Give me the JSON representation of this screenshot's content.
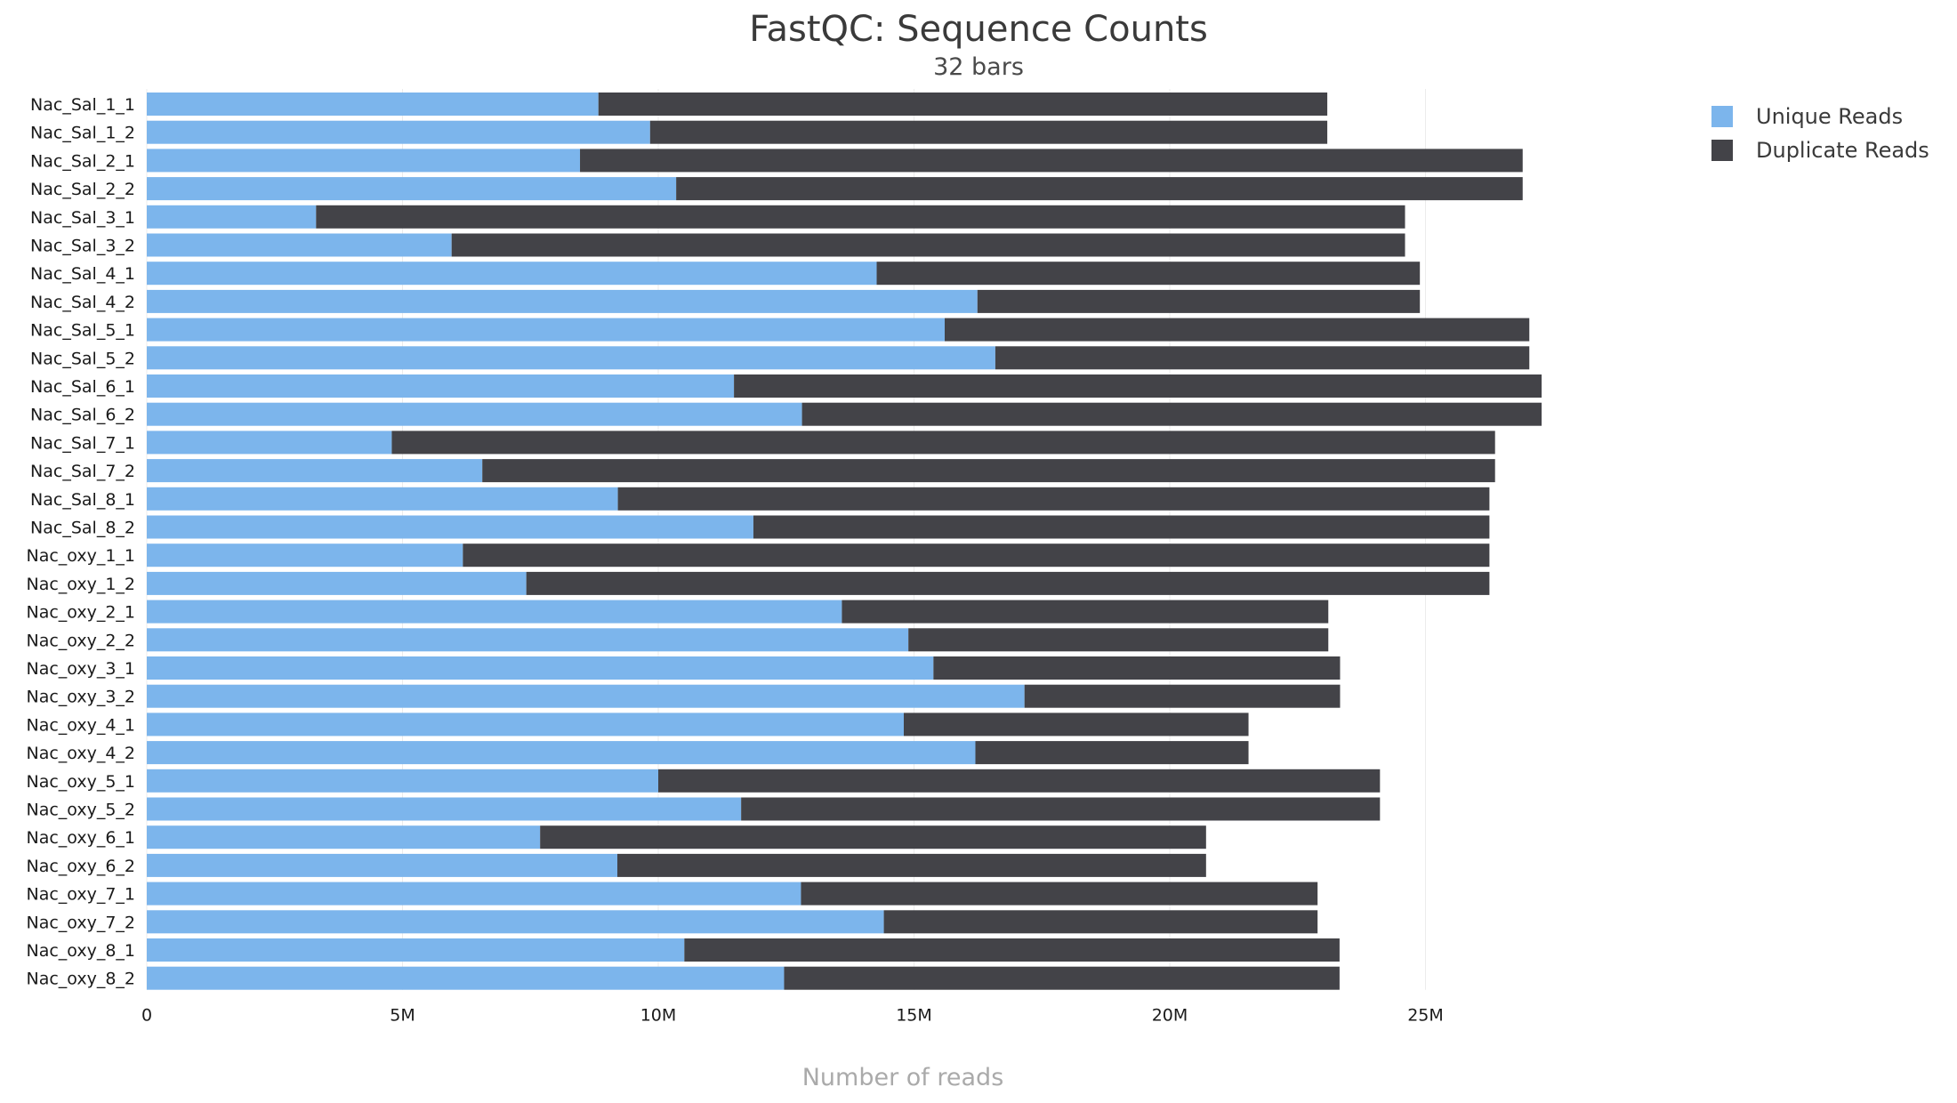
{
  "chart_data": {
    "type": "bar",
    "orientation": "horizontal",
    "stacked": true,
    "title": "FastQC: Sequence Counts",
    "subtitle": "32 bars",
    "xlabel": "Number of reads",
    "ylabel": "",
    "xlim": [
      0,
      30000000
    ],
    "x_ticks": [
      0,
      5000000,
      10000000,
      15000000,
      20000000,
      25000000
    ],
    "x_tick_labels": [
      "0",
      "5M",
      "10M",
      "15M",
      "20M",
      "25M"
    ],
    "legend_position": "top-right",
    "categories": [
      "Nac_Sal_1_1",
      "Nac_Sal_1_2",
      "Nac_Sal_2_1",
      "Nac_Sal_2_2",
      "Nac_Sal_3_1",
      "Nac_Sal_3_2",
      "Nac_Sal_4_1",
      "Nac_Sal_4_2",
      "Nac_Sal_5_1",
      "Nac_Sal_5_2",
      "Nac_Sal_6_1",
      "Nac_Sal_6_2",
      "Nac_Sal_7_1",
      "Nac_Sal_7_2",
      "Nac_Sal_8_1",
      "Nac_Sal_8_2",
      "Nac_oxy_1_1",
      "Nac_oxy_1_2",
      "Nac_oxy_2_1",
      "Nac_oxy_2_2",
      "Nac_oxy_3_1",
      "Nac_oxy_3_2",
      "Nac_oxy_4_1",
      "Nac_oxy_4_2",
      "Nac_oxy_5_1",
      "Nac_oxy_5_2",
      "Nac_oxy_6_1",
      "Nac_oxy_6_2",
      "Nac_oxy_7_1",
      "Nac_oxy_7_2",
      "Nac_oxy_8_1",
      "Nac_oxy_8_2"
    ],
    "series": [
      {
        "name": "Unique Reads",
        "color": "#7cb5ec",
        "values": [
          8830000,
          9840000,
          8470000,
          10350000,
          3310000,
          5960000,
          14270000,
          16240000,
          15600000,
          16590000,
          11480000,
          12810000,
          4790000,
          6560000,
          9210000,
          11860000,
          6180000,
          7420000,
          13590000,
          14890000,
          15380000,
          17160000,
          14800000,
          16200000,
          10000000,
          11620000,
          7690000,
          9200000,
          12790000,
          14410000,
          10510000,
          12460000
        ]
      },
      {
        "name": "Duplicate Reads",
        "color": "#434348",
        "values": [
          14250000,
          13240000,
          18430000,
          16550000,
          21290000,
          18640000,
          10620000,
          8650000,
          11430000,
          10440000,
          15790000,
          14460000,
          21570000,
          19800000,
          17040000,
          14390000,
          20070000,
          18830000,
          9510000,
          8210000,
          7950000,
          6170000,
          6740000,
          5340000,
          14110000,
          12490000,
          13020000,
          11510000,
          10100000,
          8480000,
          12810000,
          10860000
        ]
      }
    ]
  }
}
